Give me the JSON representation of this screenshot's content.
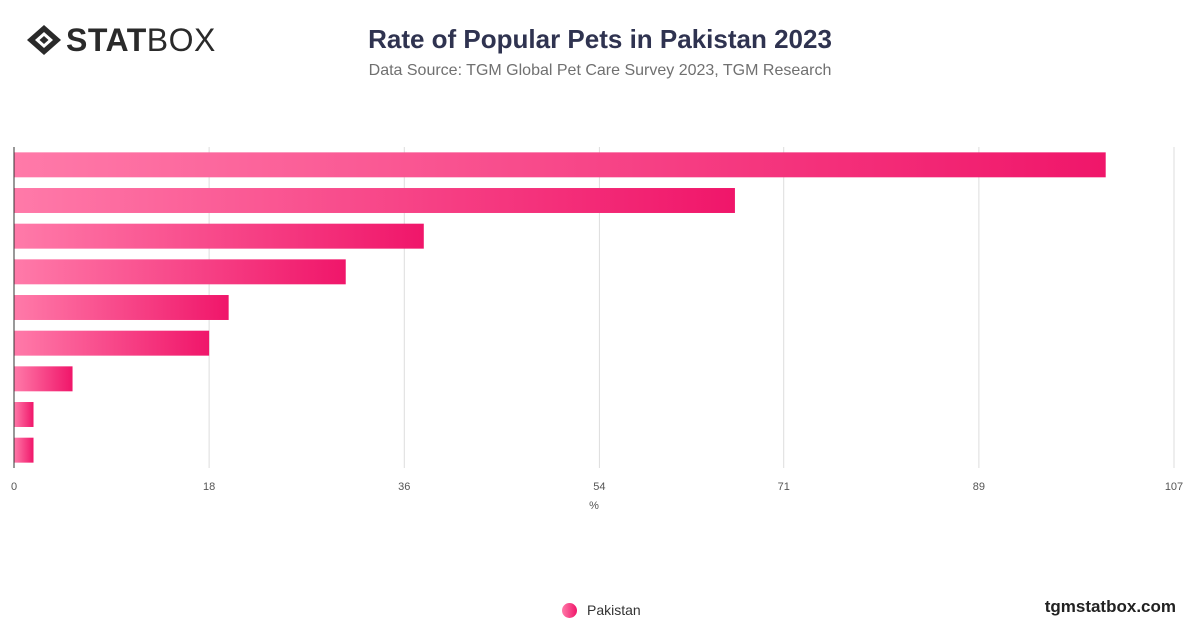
{
  "brand": {
    "strong": "STAT",
    "light": "BOX",
    "watermark": "tgmstatbox.com"
  },
  "colors": {
    "bar_start": "#ff7aa9",
    "bar_end": "#f0166a",
    "grid": "#dddddd",
    "axis": "#333333",
    "title": "#2f3350"
  },
  "chart_data": {
    "type": "bar",
    "orientation": "horizontal",
    "title": "Rate of Popular Pets in Pakistan 2023",
    "subtitle": "Data Source: TGM Global Pet Care Survey 2023, TGM Research",
    "xlabel": "%",
    "ylabel": "",
    "xlim": [
      0,
      107
    ],
    "xticks": [
      0,
      18,
      36,
      54,
      71,
      89,
      107
    ],
    "grid": true,
    "legend_position": "bottom-center",
    "series": [
      {
        "name": "Pakistan",
        "values": [
          100.7,
          66.5,
          37.8,
          30.6,
          19.8,
          18.0,
          5.4,
          1.8,
          1.8
        ]
      }
    ]
  }
}
